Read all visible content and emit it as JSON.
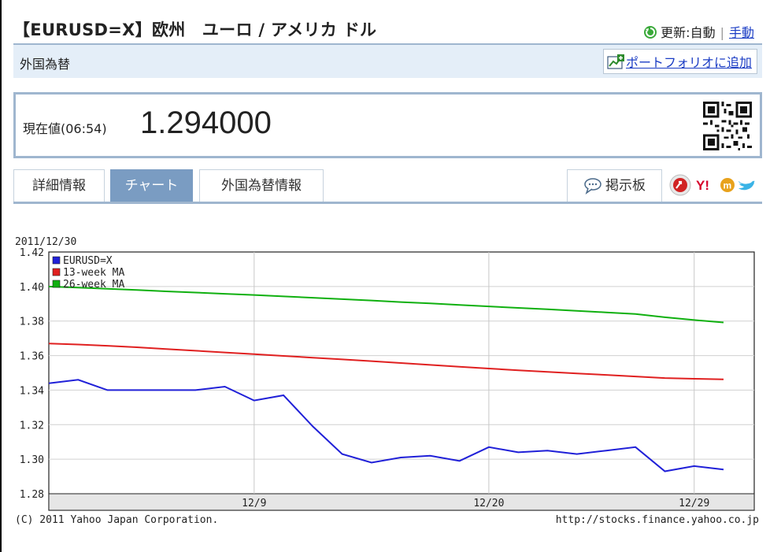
{
  "header": {
    "title": "【EURUSD=X】欧州　ユーロ / アメリカ ドル",
    "update_label": "更新:",
    "auto_label": "自動",
    "manual_label": "手動"
  },
  "subheader": {
    "category": "外国為替",
    "portfolio_link": "ポートフォリオに追加"
  },
  "quote": {
    "label": "現在値(06:54)",
    "price": "1.294000"
  },
  "tabs": [
    {
      "label": "詳細情報",
      "active": false
    },
    {
      "label": "チャート",
      "active": true
    },
    {
      "label": "外国為替情報",
      "active": false
    }
  ],
  "board_button": "掲示板",
  "chart_data": {
    "type": "line",
    "date_label": "2011/12/30",
    "x_tick_labels": [
      "12/9",
      "12/20",
      "12/29"
    ],
    "y_ticks": [
      "1.28",
      "1.30",
      "1.32",
      "1.34",
      "1.36",
      "1.38",
      "1.40",
      "1.42"
    ],
    "ylim": [
      1.28,
      1.42
    ],
    "legend_position": "top-left",
    "grid": true,
    "series": [
      {
        "name": "EURUSD=X",
        "color": "#2020d8",
        "values": [
          1.344,
          1.346,
          1.34,
          1.34,
          1.34,
          1.34,
          1.342,
          1.334,
          1.337,
          1.319,
          1.303,
          1.298,
          1.301,
          1.302,
          1.299,
          1.307,
          1.304,
          1.305,
          1.303,
          1.305,
          1.307,
          1.293,
          1.296,
          1.294
        ]
      },
      {
        "name": "13-week MA",
        "color": "#e02020",
        "values": [
          1.367,
          1.3664,
          1.3657,
          1.3648,
          1.3638,
          1.3628,
          1.3618,
          1.3608,
          1.3598,
          1.3588,
          1.3578,
          1.3568,
          1.3557,
          1.3546,
          1.3535,
          1.3525,
          1.3515,
          1.3506,
          1.3497,
          1.3488,
          1.3479,
          1.347,
          1.3466,
          1.3462
        ]
      },
      {
        "name": "26-week MA",
        "color": "#10b010",
        "values": [
          1.4,
          1.3994,
          1.3987,
          1.398,
          1.3972,
          1.3965,
          1.3958,
          1.3951,
          1.3943,
          1.3935,
          1.3927,
          1.3919,
          1.391,
          1.3902,
          1.3893,
          1.3885,
          1.3876,
          1.3868,
          1.3859,
          1.385,
          1.3841,
          1.3822,
          1.3806,
          1.3792
        ]
      }
    ],
    "footer_left": "(C) 2011 Yahoo Japan Corporation.",
    "footer_right": "http://stocks.finance.yahoo.co.jp"
  },
  "colors": {
    "accent_border": "#9fb6cf",
    "active_tab": "#7a9cc2",
    "link": "#1a3cc4",
    "subheader_bg": "#e4eef8"
  },
  "icons": [
    "refresh-icon",
    "portfolio-add-icon",
    "qr-code-icon",
    "board-icon",
    "share-icon",
    "yahoo-bookmark-icon",
    "mixi-icon",
    "twitter-icon"
  ]
}
